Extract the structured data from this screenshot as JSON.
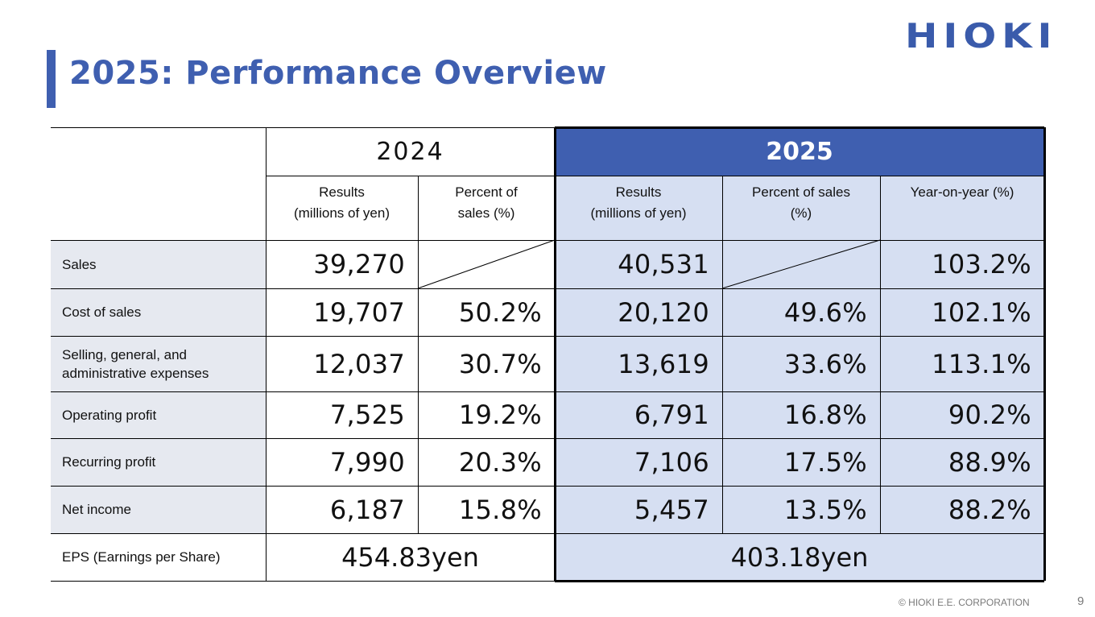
{
  "slide": {
    "title": "2025: Performance Overview",
    "logo": "HIOKI",
    "copyright": "© HIOKI E.E. CORPORATION",
    "page_number": "9"
  },
  "table": {
    "year_prev": "2024",
    "year_curr": "2025",
    "headers": {
      "prev_results": "Results\n(millions of yen)",
      "prev_percent": "Percent of\nsales (%)",
      "curr_results": "Results\n(millions of yen)",
      "curr_percent": "Percent of sales\n(%)",
      "curr_yoy": "Year-on-year (%)"
    },
    "rows": [
      {
        "label": "Sales",
        "prev_results": "39,270",
        "prev_percent": "",
        "curr_results": "40,531",
        "curr_percent": "",
        "yoy": "103.2%"
      },
      {
        "label": "Cost of sales",
        "prev_results": "19,707",
        "prev_percent": "50.2%",
        "curr_results": "20,120",
        "curr_percent": "49.6%",
        "yoy": "102.1%"
      },
      {
        "label": "Selling, general, and administrative expenses",
        "prev_results": "12,037",
        "prev_percent": "30.7%",
        "curr_results": "13,619",
        "curr_percent": "33.6%",
        "yoy": "113.1%"
      },
      {
        "label": "Operating profit",
        "prev_results": "7,525",
        "prev_percent": "19.2%",
        "curr_results": "6,791",
        "curr_percent": "16.8%",
        "yoy": "90.2%"
      },
      {
        "label": "Recurring profit",
        "prev_results": "7,990",
        "prev_percent": "20.3%",
        "curr_results": "7,106",
        "curr_percent": "17.5%",
        "yoy": "88.9%"
      },
      {
        "label": "Net income",
        "prev_results": "6,187",
        "prev_percent": "15.8%",
        "curr_results": "5,457",
        "curr_percent": "13.5%",
        "yoy": "88.2%"
      }
    ],
    "eps": {
      "label": "EPS (Earnings per Share)",
      "prev": "454.83yen",
      "curr": "403.18yen"
    }
  },
  "colors": {
    "accent": "#3f5fb0",
    "highlight_fill": "#d6dff2",
    "label_fill": "#e6e9f0"
  }
}
